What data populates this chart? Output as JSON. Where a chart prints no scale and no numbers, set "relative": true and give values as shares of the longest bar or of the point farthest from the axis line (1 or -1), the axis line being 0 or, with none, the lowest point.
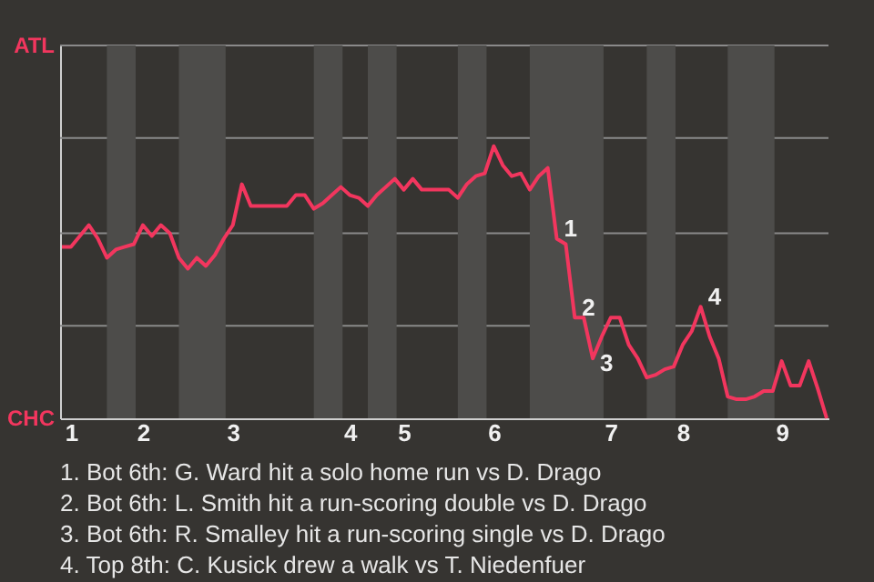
{
  "chart_data": {
    "type": "line",
    "relative": true,
    "categories": [
      null,
      "1",
      null,
      null,
      null,
      null,
      null,
      null,
      null,
      "2",
      null,
      null,
      null,
      null,
      null,
      null,
      null,
      null,
      null,
      "3",
      null,
      null,
      null,
      null,
      null,
      null,
      null,
      null,
      null,
      null,
      null,
      null,
      "4",
      null,
      null,
      null,
      null,
      null,
      "5",
      null,
      null,
      null,
      null,
      null,
      null,
      null,
      null,
      null,
      "6",
      null,
      null,
      null,
      null,
      null,
      null,
      null,
      null,
      null,
      null,
      null,
      null,
      "7",
      null,
      null,
      null,
      null,
      null,
      null,
      null,
      "8",
      null,
      null,
      null,
      null,
      null,
      null,
      null,
      null,
      null,
      null,
      "9",
      null,
      null,
      null,
      null,
      null
    ],
    "series": [
      {
        "color": "#f2365e",
        "values": [
          0.63,
          0.63,
          0.67,
          0.71,
          0.66,
          0.59,
          0.62,
          0.63,
          0.64,
          0.71,
          0.67,
          0.71,
          0.68,
          0.59,
          0.55,
          0.59,
          0.56,
          0.6,
          0.66,
          0.71,
          0.86,
          0.78,
          0.78,
          0.78,
          0.78,
          0.78,
          0.82,
          0.82,
          0.77,
          0.79,
          0.82,
          0.85,
          0.82,
          0.81,
          0.78,
          0.82,
          0.85,
          0.88,
          0.84,
          0.88,
          0.84,
          0.84,
          0.84,
          0.84,
          0.81,
          0.86,
          0.89,
          0.9,
          1,
          0.93,
          0.89,
          0.9,
          0.84,
          0.89,
          0.92,
          0.66,
          0.64,
          0.37,
          0.37,
          0.22,
          0.3,
          0.37,
          0.37,
          0.27,
          0.22,
          0.15,
          0.16,
          0.18,
          0.19,
          0.27,
          0.32,
          0.41,
          0.3,
          0.22,
          0.08,
          0.07,
          0.07,
          0.08,
          0.1,
          0.1,
          0.21,
          0.12,
          0.12,
          0.21,
          0.11,
          0
        ]
      }
    ],
    "ref_lines": [
      {
        "axis": "y",
        "value": 0.34,
        "color": "#8a8a8a"
      },
      {
        "axis": "y",
        "value": 0.68,
        "color": "#8a8a8a"
      },
      {
        "axis": "y",
        "value": 1.03,
        "color": "#8a8a8a"
      },
      {
        "axis": "y",
        "value": 1.37,
        "color": "#8a8a8a"
      }
    ],
    "annotations": [
      "ATL",
      "CHC",
      "1",
      "2",
      "3",
      "4",
      "1. Bot 6th: G. Ward hit a solo home run vs D. Drago",
      "2. Bot 6th: L. Smith hit a run-scoring double vs D. Drago",
      "3. Bot 6th: R. Smalley hit a run-scoring single vs D. Drago",
      "4. Top 8th: C. Kusick drew a walk vs T. Niedenfuer"
    ]
  }
}
